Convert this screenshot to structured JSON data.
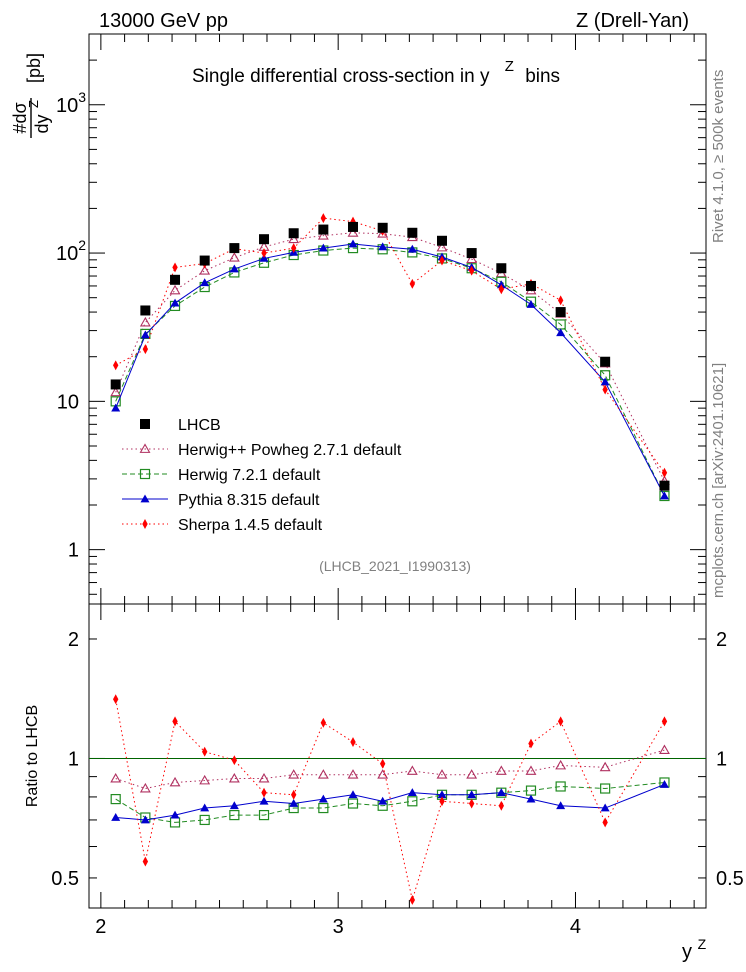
{
  "header": {
    "left": "13000 GeV pp",
    "right": "Z (Drell-Yan)"
  },
  "side_text": {
    "rivet": "Rivet 4.1.0, ≥ 500k events",
    "mcplots": "mcplots.cern.ch [arXiv:2401.10621]"
  },
  "colors": {
    "lhcb": "#000000",
    "herwigpp": "#b03060",
    "herwig7": "#228b22",
    "pythia": "#0000cd",
    "sherpa": "#ff0000",
    "refline": "#006400"
  },
  "chart_data": [
    {
      "type": "scatter",
      "panel": "main",
      "title": "Single differential cross-section in y  Z bins",
      "title_main": "Single differential cross-section in y",
      "title_sup": "Z",
      "title_end": "bins",
      "ylabel_numerator": "#dσ",
      "ylabel_denominator": "dy",
      "ylabel_sup": "Z",
      "ylabel_unit": "[pb]",
      "yscale": "log",
      "ylim": [
        0.43,
        3000
      ],
      "xlim": [
        1.95,
        4.55
      ],
      "yticks": [
        {
          "v": 1,
          "label": "1"
        },
        {
          "v": 10,
          "label": "10"
        },
        {
          "v": 100,
          "label": "10",
          "sup": "2"
        },
        {
          "v": 1000,
          "label": "10",
          "sup": "3"
        }
      ],
      "watermark": "(LHCB_2021_I1990313)",
      "x": [
        2.0625,
        2.1875,
        2.3125,
        2.4375,
        2.5625,
        2.6875,
        2.8125,
        2.9375,
        3.0625,
        3.1875,
        3.3125,
        3.4375,
        3.5625,
        3.6875,
        3.8125,
        3.9375,
        4.125,
        4.375
      ],
      "series": [
        {
          "name": "LHCB",
          "key": "lhcb",
          "marker": "square-filled",
          "values": [
            13,
            41,
            66,
            89,
            108,
            124,
            136,
            144,
            150,
            148,
            137,
            121,
            100,
            79,
            60,
            40,
            18.5,
            2.7
          ]
        },
        {
          "name": "Herwig++ Powheg 2.7.1 default",
          "key": "herwigpp",
          "marker": "triangle-open",
          "line": "dotted",
          "values": [
            11.5,
            34,
            56,
            76,
            93,
            110,
            124,
            131,
            137,
            135,
            128,
            109,
            91,
            73,
            56,
            39,
            18,
            2.9
          ]
        },
        {
          "name": "Herwig 7.2.1 default",
          "key": "herwig7",
          "marker": "square-open",
          "line": "dashed",
          "values": [
            10,
            28.5,
            44,
            59,
            74,
            86,
            97,
            104,
            108,
            106,
            101,
            92,
            79,
            64,
            47,
            33,
            15,
            2.3
          ]
        },
        {
          "name": "Pythia 8.315 default",
          "key": "pythia",
          "marker": "triangle-filled",
          "line": "solid",
          "values": [
            9,
            28,
            46,
            63,
            78,
            92,
            101,
            108,
            115,
            110,
            106,
            94,
            80,
            61,
            45,
            29,
            13.5,
            2.3
          ]
        },
        {
          "name": "Sherpa 1.4.5 default",
          "key": "sherpa",
          "marker": "diamond-filled",
          "line": "dotted",
          "values": [
            17.5,
            22.5,
            80,
            85,
            107,
            100,
            108,
            172,
            163,
            141,
            62,
            89,
            76,
            57,
            62,
            48,
            12,
            3.3
          ]
        }
      ]
    },
    {
      "type": "line",
      "panel": "ratio",
      "ylabel": "Ratio to LHCB",
      "yscale": "log",
      "ylim": [
        0.42,
        2.45
      ],
      "yticks": [
        {
          "v": 0.5,
          "label": "0.5"
        },
        {
          "v": 1,
          "label": "1"
        },
        {
          "v": 2,
          "label": "2"
        }
      ],
      "xlabel": "y",
      "xlabel_sup": "Z",
      "xticks": [
        {
          "v": 2,
          "label": "2"
        },
        {
          "v": 3,
          "label": "3"
        },
        {
          "v": 4,
          "label": "4"
        }
      ],
      "x": [
        2.0625,
        2.1875,
        2.3125,
        2.4375,
        2.5625,
        2.6875,
        2.8125,
        2.9375,
        3.0625,
        3.1875,
        3.3125,
        3.4375,
        3.5625,
        3.6875,
        3.8125,
        3.9375,
        4.125,
        4.375
      ],
      "series": [
        {
          "name": "Herwig++ Powheg 2.7.1 default",
          "key": "herwigpp",
          "marker": "triangle-open",
          "line": "dotted",
          "values": [
            0.89,
            0.84,
            0.87,
            0.88,
            0.89,
            0.89,
            0.91,
            0.91,
            0.91,
            0.91,
            0.93,
            0.91,
            0.91,
            0.93,
            0.93,
            0.96,
            0.95,
            1.05
          ]
        },
        {
          "name": "Herwig 7.2.1 default",
          "key": "herwig7",
          "marker": "square-open",
          "line": "dashed",
          "values": [
            0.79,
            0.71,
            0.69,
            0.7,
            0.72,
            0.72,
            0.75,
            0.75,
            0.77,
            0.76,
            0.78,
            0.81,
            0.81,
            0.82,
            0.83,
            0.85,
            0.84,
            0.87
          ]
        },
        {
          "name": "Pythia 8.315 default",
          "key": "pythia",
          "marker": "triangle-filled",
          "line": "solid",
          "values": [
            0.71,
            0.7,
            0.72,
            0.75,
            0.76,
            0.78,
            0.77,
            0.79,
            0.81,
            0.78,
            0.82,
            0.81,
            0.81,
            0.82,
            0.79,
            0.76,
            0.75,
            0.86
          ]
        },
        {
          "name": "Sherpa 1.4.5 default",
          "key": "sherpa",
          "marker": "diamond-filled",
          "line": "dotted",
          "values": [
            1.41,
            0.55,
            1.24,
            1.04,
            0.99,
            0.82,
            0.81,
            1.23,
            1.1,
            0.97,
            0.44,
            0.78,
            0.77,
            0.76,
            1.09,
            1.24,
            0.69,
            1.24
          ]
        }
      ]
    }
  ]
}
